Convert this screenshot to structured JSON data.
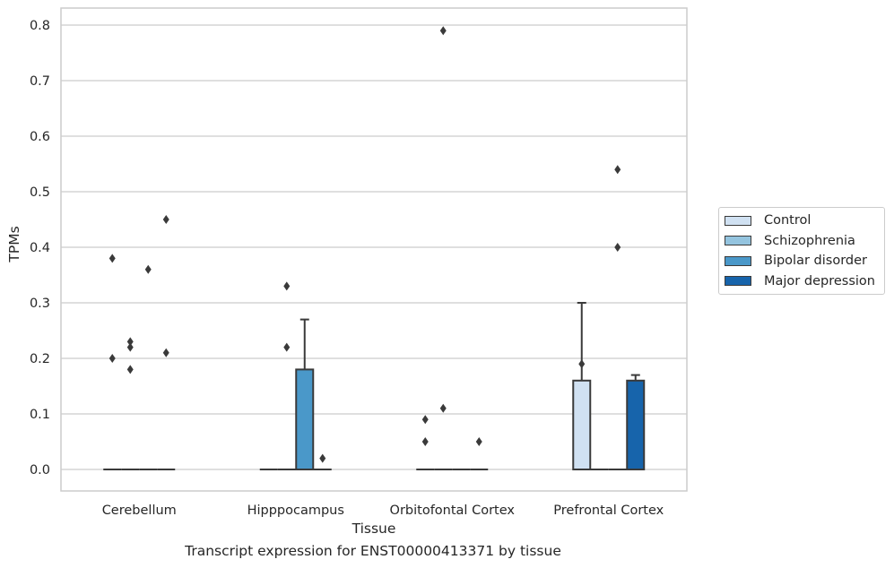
{
  "chart_data": {
    "type": "bar",
    "xlabel": "Tissue",
    "ylabel": "TPMs",
    "caption": "Transcript expression for ENST00000413371 by tissue",
    "categories": [
      "Cerebellum",
      "Hipppocampus",
      "Orbitofontal Cortex",
      "Prefrontal Cortex"
    ],
    "ylim": [
      -0.04,
      0.83
    ],
    "yticks": [
      "0.0",
      "0.1",
      "0.2",
      "0.3",
      "0.4",
      "0.5",
      "0.6",
      "0.7",
      "0.8"
    ],
    "grid": true,
    "legend_position": "right",
    "series": [
      {
        "name": "Control",
        "color": "#d0e1f2",
        "values": [
          0.0,
          0.0,
          0.0,
          0.16
        ],
        "whisker": [
          0.0,
          0.0,
          0.0,
          0.3
        ],
        "outliers": [
          [
            0.2,
            0.38
          ],
          [],
          [
            0.05,
            0.09
          ],
          [
            0.19
          ]
        ]
      },
      {
        "name": "Schizophrenia",
        "color": "#94c4df",
        "values": [
          0.0,
          0.0,
          0.0,
          0.0
        ],
        "whisker": [
          0.0,
          0.0,
          0.0,
          0.0
        ],
        "outliers": [
          [
            0.18,
            0.22,
            0.23
          ],
          [
            0.22,
            0.33
          ],
          [
            0.11,
            0.79
          ],
          []
        ]
      },
      {
        "name": "Bipolar disorder",
        "color": "#4a98c9",
        "values": [
          0.0,
          0.18,
          0.0,
          0.0
        ],
        "whisker": [
          0.0,
          0.27,
          0.0,
          0.0
        ],
        "outliers": [
          [
            0.36
          ],
          [],
          [],
          [
            0.4,
            0.54
          ]
        ]
      },
      {
        "name": "Major depression",
        "color": "#1764ab",
        "values": [
          0.0,
          0.0,
          0.0,
          0.16
        ],
        "whisker": [
          0.0,
          0.0,
          0.0,
          0.17
        ],
        "outliers": [
          [
            0.21,
            0.45
          ],
          [
            0.02
          ],
          [
            0.05
          ],
          []
        ]
      }
    ]
  },
  "legend": {
    "items": [
      {
        "label": "Control",
        "color": "#d0e1f2"
      },
      {
        "label": "Schizophrenia",
        "color": "#94c4df"
      },
      {
        "label": "Bipolar disorder",
        "color": "#4a98c9"
      },
      {
        "label": "Major depression",
        "color": "#1764ab"
      }
    ]
  },
  "colors": {
    "grid": "#cccccc",
    "axis_frame": "#cccccc",
    "text": "#262626",
    "edge": "#3a3a3a"
  }
}
